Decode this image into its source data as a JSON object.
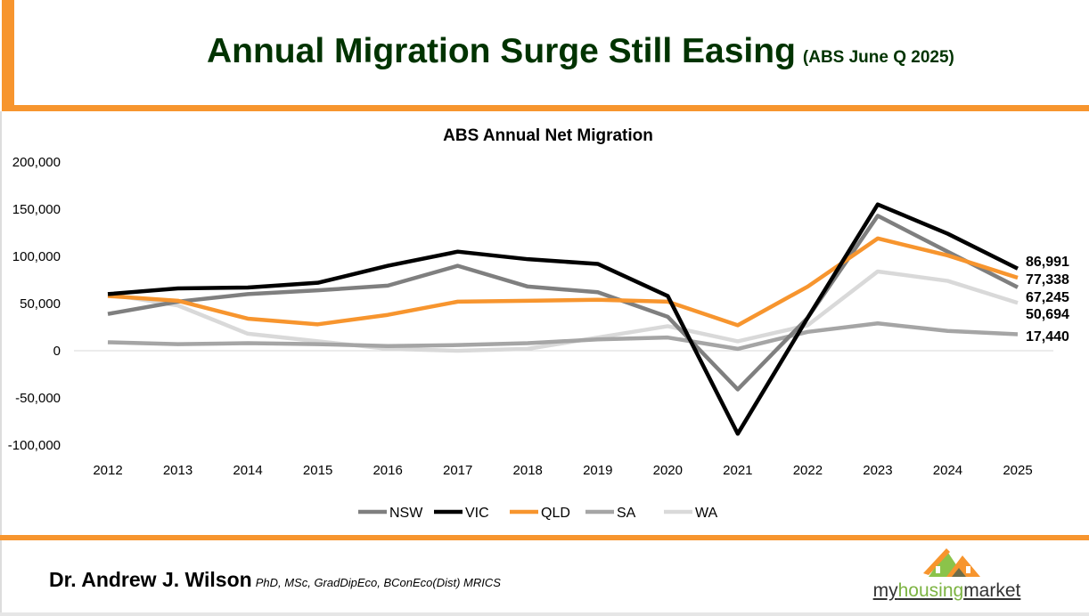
{
  "header": {
    "title": "Annual Migration Surge Still Easing",
    "subtitle": "(ABS June Q 2025)"
  },
  "footer": {
    "author": "Dr. Andrew J. Wilson",
    "credentials": "PhD, MSc, GradDipEco, BConEco(Dist) MRICS",
    "logo_text_parts": [
      "my",
      "housing",
      "market"
    ]
  },
  "colors": {
    "accent": "#F7952E",
    "title": "#003300"
  },
  "chart_data": {
    "type": "line",
    "title": "ABS Annual Net Migration",
    "xlabel": "",
    "ylabel": "",
    "x": [
      "2012",
      "2013",
      "2014",
      "2015",
      "2016",
      "2017",
      "2018",
      "2019",
      "2020",
      "2021",
      "2022",
      "2023",
      "2024",
      "2025"
    ],
    "ylim": [
      -100000,
      200000
    ],
    "yticks": [
      "200,000",
      "150,000",
      "100,000",
      "50,000",
      "0",
      "-50,000",
      "-100,000"
    ],
    "ytick_values": [
      200000,
      150000,
      100000,
      50000,
      0,
      -50000,
      -100000
    ],
    "grid": false,
    "legend": "bottom",
    "series": [
      {
        "name": "NSW",
        "color": "#7F7F7F",
        "values": [
          39000,
          52000,
          60000,
          64000,
          69000,
          90000,
          68000,
          62000,
          36000,
          -41000,
          35000,
          143000,
          105000,
          67245
        ],
        "end_label": "67,245"
      },
      {
        "name": "VIC",
        "color": "#000000",
        "values": [
          60000,
          66000,
          67000,
          72000,
          90000,
          105000,
          97000,
          92000,
          58000,
          -88000,
          35000,
          155000,
          124000,
          86991
        ],
        "end_label": "86,991"
      },
      {
        "name": "QLD",
        "color": "#F7952E",
        "values": [
          58000,
          53000,
          34000,
          28000,
          38000,
          52000,
          53000,
          54000,
          52000,
          27000,
          68000,
          119000,
          101000,
          77338
        ],
        "end_label": "77,338"
      },
      {
        "name": "SA",
        "color": "#A5A5A5",
        "values": [
          9000,
          7000,
          8000,
          7000,
          5000,
          6000,
          8000,
          12000,
          14000,
          2000,
          20000,
          29000,
          21000,
          17440
        ],
        "end_label": "17,440"
      },
      {
        "name": "WA",
        "color": "#D9D9D9",
        "values": [
          60000,
          48000,
          18000,
          10000,
          2000,
          0,
          2000,
          14000,
          26000,
          10000,
          27000,
          84000,
          74000,
          50694
        ],
        "end_label": "50,694"
      }
    ]
  }
}
